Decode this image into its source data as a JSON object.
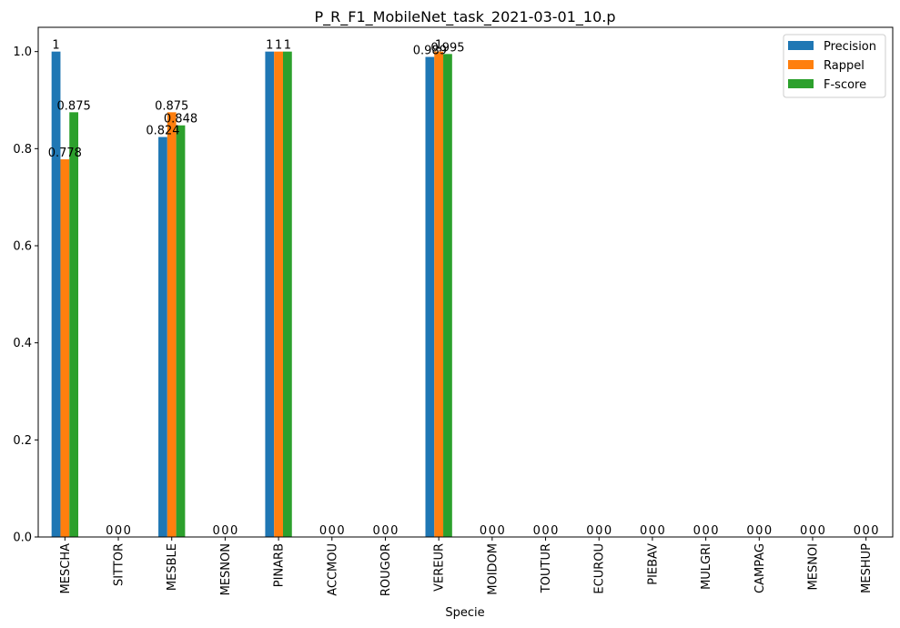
{
  "chart_data": {
    "type": "bar",
    "title": "P_R_F1_MobileNet_task_2021-03-01_10.p",
    "xlabel": "Specie",
    "ylabel": "",
    "ylim": [
      0,
      1.05
    ],
    "yticks": [
      "0.0",
      "0.2",
      "0.4",
      "0.6",
      "0.8",
      "1.0"
    ],
    "grid": false,
    "legend_position": "top-right",
    "categories": [
      "MESCHA",
      "SITTOR",
      "MESBLE",
      "MESNON",
      "PINARB",
      "ACCMOU",
      "ROUGOR",
      "VEREUR",
      "MOIDOM",
      "TOUTUR",
      "ECUROU",
      "PIEBAV",
      "MULGRI",
      "CAMPAG",
      "MESNOI",
      "MESHUP"
    ],
    "series": [
      {
        "name": "Precision",
        "color": "#1f77b4",
        "values": [
          1,
          0,
          0.824,
          0,
          1,
          0,
          0,
          0.989,
          0,
          0,
          0,
          0,
          0,
          0,
          0,
          0
        ],
        "labels": [
          "1",
          "0",
          "0.824",
          "0",
          "1",
          "0",
          "0",
          "0.989",
          "0",
          "0",
          "0",
          "0",
          "0",
          "0",
          "0",
          "0"
        ]
      },
      {
        "name": "Rappel",
        "color": "#ff7f0e",
        "values": [
          0.778,
          0,
          0.875,
          0,
          1,
          0,
          0,
          1,
          0,
          0,
          0,
          0,
          0,
          0,
          0,
          0
        ],
        "labels": [
          "0.778",
          "0",
          "0.875",
          "0",
          "1",
          "0",
          "0",
          "1",
          "0",
          "0",
          "0",
          "0",
          "0",
          "0",
          "0",
          "0"
        ]
      },
      {
        "name": "F-score",
        "color": "#2ca02c",
        "values": [
          0.875,
          0,
          0.848,
          0,
          1,
          0,
          0,
          0.995,
          0,
          0,
          0,
          0,
          0,
          0,
          0,
          0
        ],
        "labels": [
          "0.875",
          "0",
          "0.848",
          "0",
          "1",
          "0",
          "0",
          "0.995",
          "0",
          "0",
          "0",
          "0",
          "0",
          "0",
          "0",
          "0"
        ]
      }
    ]
  }
}
